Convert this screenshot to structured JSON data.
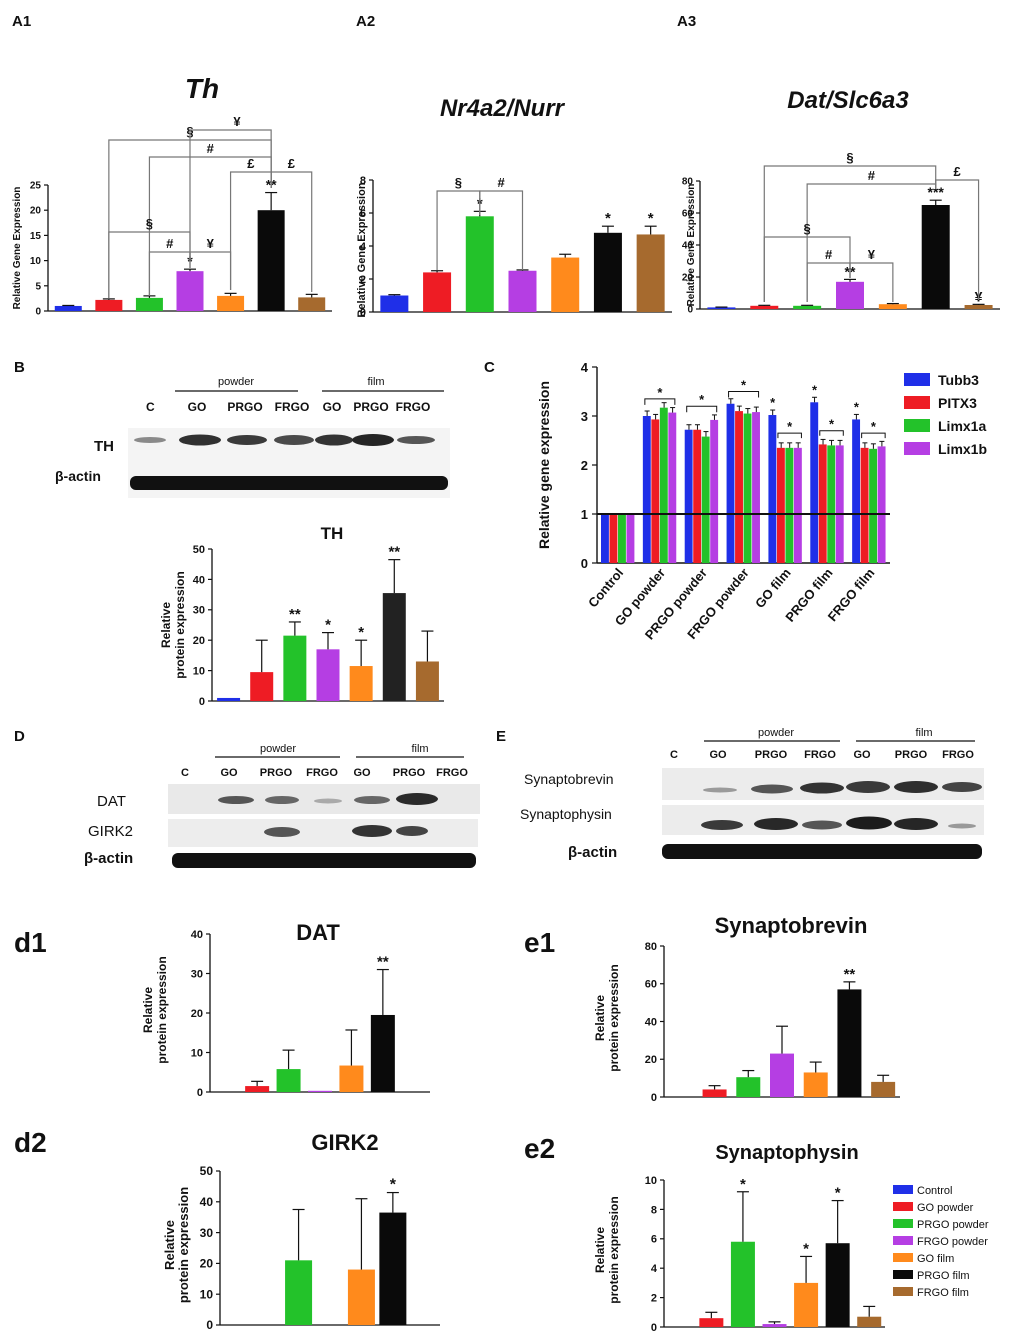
{
  "colors": {
    "blue": "#1f2fe8",
    "red": "#ee1c24",
    "green": "#23c22a",
    "purple": "#b53ee3",
    "orange": "#ff8a1c",
    "black": "#0a0a0a",
    "brown": "#a66a2e"
  },
  "panel_labels": {
    "a1": "A1",
    "a2": "A2",
    "a3": "A3",
    "b": "B",
    "c": "C",
    "d": "D",
    "e": "E",
    "d1": "d1",
    "d2": "d2",
    "e1": "e1",
    "e2": "e2"
  },
  "blots": {
    "b": {
      "c": "C",
      "powder": "powder",
      "film": "film",
      "lanes": [
        "GO",
        "PRGO",
        "FRGO",
        "GO",
        "PRGO",
        "FRGO"
      ],
      "rows": [
        "TH",
        "β-actin"
      ]
    },
    "d": {
      "c": "C",
      "powder": "powder",
      "film": "film",
      "lanes": [
        "GO",
        "PRGO",
        "FRGO",
        "GO",
        "PRGO",
        "FRGO"
      ],
      "rows": [
        "DAT",
        "GIRK2",
        "β-actin"
      ]
    },
    "e": {
      "c": "C",
      "powder": "powder",
      "film": "film",
      "lanes": [
        "GO",
        "PRGO",
        "FRGO",
        "GO",
        "PRGO",
        "FRGO"
      ],
      "rows": [
        "Synaptobrevin",
        "Synaptophysin",
        "β-actin"
      ]
    }
  },
  "legend": {
    "c": [
      "Tubb3",
      "PITX3",
      "Limx1a",
      "Limx1b"
    ],
    "main": [
      "Control",
      "GO powder",
      "PRGO powder",
      "FRGO powder",
      "GO film",
      "PRGO film",
      "FRGO film"
    ]
  },
  "chart_data": [
    {
      "id": "a1",
      "type": "bar",
      "title": "Th",
      "ylabel": "Relative Gene Expression",
      "ylim": [
        0,
        25
      ],
      "yticks": [
        "0",
        "5",
        "10",
        "15",
        "20",
        "25"
      ],
      "categories": [
        "Control",
        "GO powder",
        "PRGO powder",
        "FRGO powder",
        "GO film",
        "PRGO film",
        "FRGO film"
      ],
      "values": [
        1,
        2.2,
        2.6,
        7.9,
        3.0,
        20,
        2.7
      ],
      "errors": [
        0.1,
        0.2,
        0.4,
        0.4,
        0.5,
        3.5,
        0.6
      ],
      "stars": [
        "",
        "",
        "",
        "*",
        "",
        "**",
        ""
      ],
      "brackets": [
        "§",
        "#",
        "¥",
        "§",
        "#",
        "¥",
        "£",
        "£"
      ]
    },
    {
      "id": "a2",
      "type": "bar",
      "title": "Nr4a2/Nurr",
      "ylabel": "Relative Gene Expression",
      "ylim": [
        0,
        8
      ],
      "yticks": [
        "0",
        "2",
        "4",
        "6",
        "8"
      ],
      "categories": [
        "Control",
        "GO powder",
        "PRGO powder",
        "FRGO powder",
        "GO film",
        "PRGO film",
        "FRGO film"
      ],
      "values": [
        1.0,
        2.4,
        5.8,
        2.5,
        3.3,
        4.8,
        4.7
      ],
      "errors": [
        0.05,
        0.1,
        0.3,
        0.05,
        0.2,
        0.4,
        0.5
      ],
      "stars": [
        "",
        "",
        "*",
        "",
        "",
        "*",
        "*"
      ],
      "brackets": [
        "§",
        "#"
      ]
    },
    {
      "id": "a3",
      "type": "bar",
      "title": "Dat/Slc6a3",
      "ylabel": "Relative Gene Expression",
      "ylim": [
        0,
        80
      ],
      "yticks": [
        "0",
        "20",
        "40",
        "60",
        "80"
      ],
      "categories": [
        "Control",
        "GO powder",
        "PRGO powder",
        "FRGO powder",
        "GO film",
        "PRGO film",
        "FRGO film"
      ],
      "values": [
        1,
        2,
        2,
        17,
        3,
        65,
        2.5
      ],
      "errors": [
        0.2,
        0.3,
        0.3,
        1.5,
        0.4,
        3,
        0.4
      ],
      "stars": [
        "",
        "",
        "",
        "**",
        "",
        "***",
        "¥"
      ],
      "brackets": [
        "§",
        "#",
        "£",
        "§",
        "#",
        "¥"
      ]
    },
    {
      "id": "b",
      "type": "bar",
      "title": "TH",
      "ylabel": "Relative protein expression",
      "ylim": [
        0,
        50
      ],
      "yticks": [
        "0",
        "10",
        "20",
        "30",
        "40",
        "50"
      ],
      "categories": [
        "Control",
        "GO powder",
        "PRGO powder",
        "FRGO powder",
        "GO film",
        "PRGO film",
        "FRGO film"
      ],
      "values": [
        1,
        9.5,
        21.5,
        17,
        11.5,
        35.5,
        13
      ],
      "errors": [
        0,
        10.5,
        4.5,
        5.5,
        8.5,
        11,
        10
      ],
      "stars": [
        "",
        "",
        "**",
        "*",
        "*",
        "**",
        ""
      ]
    },
    {
      "id": "c",
      "type": "bar",
      "ylabel": "Relative gene expression",
      "ylim": [
        0,
        4
      ],
      "yticks": [
        "0",
        "1",
        "2",
        "3",
        "4"
      ],
      "categories": [
        "Control",
        "GO powder",
        "PRGO powder",
        "FRGO powder",
        "GO film",
        "PRGO film",
        "FRGO film"
      ],
      "series": [
        {
          "name": "Tubb3",
          "values": [
            1,
            3.0,
            2.72,
            3.25,
            3.02,
            3.28,
            2.93
          ]
        },
        {
          "name": "PITX3",
          "values": [
            1,
            2.93,
            2.72,
            3.1,
            2.35,
            2.42,
            2.35
          ]
        },
        {
          "name": "Limx1a",
          "values": [
            1,
            3.17,
            2.58,
            3.05,
            2.35,
            2.4,
            2.33
          ]
        },
        {
          "name": "Limx1b",
          "values": [
            1,
            3.07,
            2.92,
            3.08,
            2.35,
            2.4,
            2.38
          ]
        }
      ],
      "stars": [
        "*",
        "*",
        "*",
        "*",
        "*",
        "*",
        "*",
        "*",
        "*",
        "*"
      ]
    },
    {
      "id": "d1",
      "type": "bar",
      "title": "DAT",
      "ylabel": "Relative protein expression",
      "ylim": [
        0,
        40
      ],
      "yticks": [
        "0",
        "10",
        "20",
        "30",
        "40"
      ],
      "categories": [
        "Control",
        "GO powder",
        "PRGO powder",
        "FRGO powder",
        "GO film",
        "PRGO film",
        "FRGO film"
      ],
      "values": [
        0,
        1.5,
        5.8,
        0.3,
        6.7,
        19.5,
        0
      ],
      "errors": [
        0,
        1.2,
        4.8,
        0,
        9,
        11.5,
        0
      ],
      "stars": [
        "",
        "",
        "",
        "",
        "",
        "**",
        ""
      ]
    },
    {
      "id": "d2",
      "type": "bar",
      "title": "GIRK2",
      "ylabel": "Relative protein expression",
      "ylim": [
        0,
        50
      ],
      "yticks": [
        "0",
        "10",
        "20",
        "30",
        "40",
        "50"
      ],
      "categories": [
        "Control",
        "GO powder",
        "PRGO powder",
        "FRGO powder",
        "GO film",
        "PRGO film",
        "FRGO film"
      ],
      "values": [
        0,
        0,
        21,
        0,
        18,
        36.5,
        0
      ],
      "errors": [
        0,
        0,
        16.5,
        0,
        23,
        6.5,
        0
      ],
      "stars": [
        "",
        "",
        "",
        "",
        "",
        "*",
        ""
      ]
    },
    {
      "id": "e1",
      "type": "bar",
      "title": "Synaptobrevin",
      "ylabel": "Relative protein expression",
      "ylim": [
        0,
        80
      ],
      "yticks": [
        "0",
        "20",
        "40",
        "60",
        "80"
      ],
      "categories": [
        "Control",
        "GO powder",
        "PRGO powder",
        "FRGO powder",
        "GO film",
        "PRGO film",
        "FRGO film"
      ],
      "values": [
        0,
        4,
        10.5,
        23,
        13,
        57,
        8
      ],
      "errors": [
        0,
        2,
        3.5,
        14.5,
        5.5,
        4,
        3.5
      ],
      "stars": [
        "",
        "",
        "",
        "",
        "",
        "**",
        ""
      ]
    },
    {
      "id": "e2",
      "type": "bar",
      "title": "Synaptophysin",
      "ylabel": "Relative protein expression",
      "ylim": [
        0,
        10
      ],
      "yticks": [
        "0",
        "2",
        "4",
        "6",
        "8",
        "10"
      ],
      "categories": [
        "Control",
        "GO powder",
        "PRGO powder",
        "FRGO powder",
        "GO film",
        "PRGO film",
        "FRGO film"
      ],
      "values": [
        0,
        0.6,
        5.8,
        0.2,
        3.0,
        5.7,
        0.7
      ],
      "errors": [
        0,
        0.4,
        3.4,
        0.15,
        1.8,
        2.9,
        0.7
      ],
      "stars": [
        "",
        "",
        "*",
        "",
        "*",
        "*",
        ""
      ]
    }
  ]
}
